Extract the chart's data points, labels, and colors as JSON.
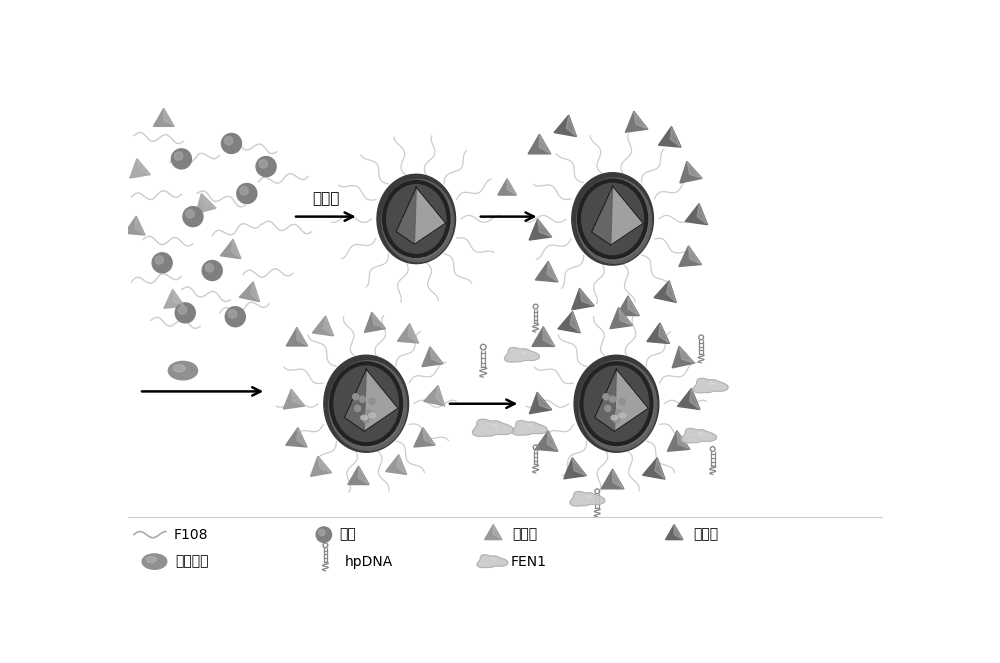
{
  "bg": "#ffffff",
  "step1_label": "自组装",
  "legend_row1": [
    "F108",
    "硅源",
    "环己烷",
    "靶向肽"
  ],
  "legend_row2": [
    "化学药物",
    "hpDNA",
    "FEN1"
  ],
  "wavy_color": "#cccccc",
  "sphere_dark": "#5a5a5a",
  "sphere_mid": "#808080",
  "sphere_light": "#aaaaaa",
  "tri_light": "#999999",
  "tri_dark": "#666666",
  "small_circle_color": "#888888",
  "ellipse_color": "#999999",
  "dna_color": "#aaaaaa",
  "fen1_color": "#bbbbbb"
}
